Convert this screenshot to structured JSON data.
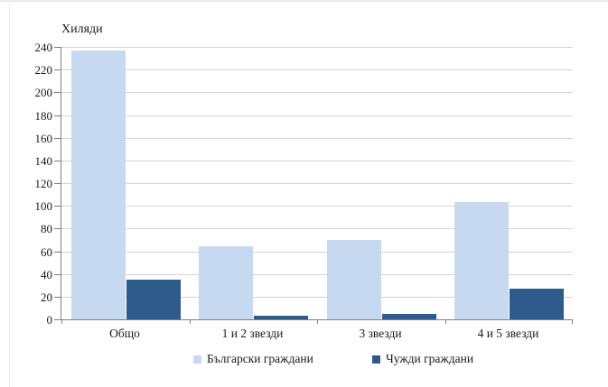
{
  "frame": {
    "background_color": "#ffffff",
    "border_color": "#ebebeb"
  },
  "chart_data": {
    "type": "bar",
    "title": "Хиляди",
    "categories": [
      "Общо",
      "1 и 2 звезди",
      "3 звезди",
      "4 и 5 звезди"
    ],
    "series": [
      {
        "name": "Български граждани",
        "color": "#c6d9f0",
        "values": [
          237,
          64,
          70,
          103
        ]
      },
      {
        "name": "Чужди граждани",
        "color": "#2f5b8c",
        "values": [
          35,
          3,
          5,
          27
        ]
      }
    ],
    "ylim": [
      0,
      240
    ],
    "ytick_step": 20,
    "ytick_labels": [
      "0",
      "20",
      "40",
      "60",
      "80",
      "100",
      "120",
      "140",
      "160",
      "180",
      "200",
      "220",
      "240"
    ],
    "xlabel": "",
    "ylabel": "Хиляди",
    "grid": true,
    "legend_position": "bottom",
    "gridline_color": "#d3d3d3",
    "axis_color": "#808080",
    "text_color": "#1a1a1a"
  }
}
